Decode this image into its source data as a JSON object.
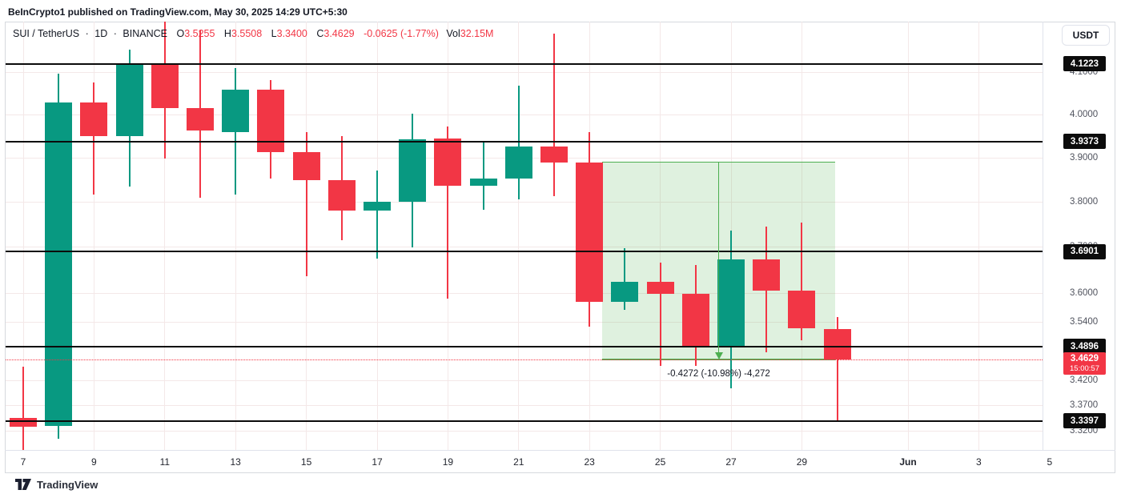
{
  "header": {
    "attribution": "BeInCrypto1 published on TradingView.com, May 30, 2025 14:29 UTC+5:30",
    "symbol_row": {
      "symbol": "SUI / TetherUS",
      "dot1": "·",
      "interval": "1D",
      "dot2": "·",
      "exchange": "BINANCE",
      "o_label": "O",
      "o_value": "3.5255",
      "h_label": "H",
      "h_value": "3.5508",
      "l_label": "L",
      "l_value": "3.3400",
      "c_label": "C",
      "c_value": "3.4629",
      "change": "-0.0625 (-1.77%)",
      "vol_label": "Vol",
      "vol_value": "32.15M"
    },
    "currency_button": "USDT"
  },
  "price_axis": {
    "ticks": [
      {
        "label": "4.1000",
        "price": 4.1
      },
      {
        "label": "4.0000",
        "price": 4.0
      },
      {
        "label": "3.9000",
        "price": 3.9
      },
      {
        "label": "3.8000",
        "price": 3.8
      },
      {
        "label": "3.7000",
        "price": 3.7
      },
      {
        "label": "3.6000",
        "price": 3.6
      },
      {
        "label": "3.5400",
        "price": 3.54
      },
      {
        "label": "3.4200",
        "price": 3.42
      },
      {
        "label": "3.3700",
        "price": 3.37
      },
      {
        "label": "3.3200",
        "price": 3.32
      }
    ],
    "current": {
      "label": "3.4629",
      "countdown": "15:00:57",
      "price": 3.4629
    }
  },
  "time_axis": {
    "labels": [
      {
        "label": "7",
        "day": 7
      },
      {
        "label": "9",
        "day": 9
      },
      {
        "label": "11",
        "day": 11
      },
      {
        "label": "13",
        "day": 13
      },
      {
        "label": "15",
        "day": 15
      },
      {
        "label": "17",
        "day": 17
      },
      {
        "label": "19",
        "day": 19
      },
      {
        "label": "21",
        "day": 21
      },
      {
        "label": "23",
        "day": 23
      },
      {
        "label": "25",
        "day": 25
      },
      {
        "label": "27",
        "day": 27
      },
      {
        "label": "29",
        "day": 29
      },
      {
        "label": "Jun",
        "day": 32,
        "bold": true
      },
      {
        "label": "3",
        "day": 34
      },
      {
        "label": "5",
        "day": 36
      }
    ]
  },
  "chart_data": {
    "type": "candlestick",
    "title": "SUI / TetherUS · 1D · BINANCE",
    "x_unit": "day of May 2025 (32+ = June)",
    "y_unit": "USDT",
    "y_scale": "log",
    "visible_price_range": [
      3.3,
      4.23
    ],
    "candles": [
      {
        "d": 7,
        "o": 3.345,
        "h": 3.448,
        "l": 3.281,
        "c": 3.328
      },
      {
        "d": 8,
        "o": 3.33,
        "h": 4.098,
        "l": 3.305,
        "c": 4.029
      },
      {
        "d": 9,
        "o": 4.029,
        "h": 4.077,
        "l": 3.816,
        "c": 3.95
      },
      {
        "d": 10,
        "o": 3.95,
        "h": 4.156,
        "l": 3.834,
        "c": 4.121
      },
      {
        "d": 11,
        "o": 4.121,
        "h": 4.225,
        "l": 3.898,
        "c": 4.016
      },
      {
        "d": 12,
        "o": 4.016,
        "h": 4.204,
        "l": 3.81,
        "c": 3.963
      },
      {
        "d": 13,
        "o": 3.959,
        "h": 4.111,
        "l": 3.816,
        "c": 4.059
      },
      {
        "d": 14,
        "o": 4.059,
        "h": 4.083,
        "l": 3.852,
        "c": 3.913
      },
      {
        "d": 15,
        "o": 3.913,
        "h": 3.959,
        "l": 3.637,
        "c": 3.849
      },
      {
        "d": 16,
        "o": 3.849,
        "h": 3.95,
        "l": 3.715,
        "c": 3.781
      },
      {
        "d": 17,
        "o": 3.781,
        "h": 3.87,
        "l": 3.675,
        "c": 3.801
      },
      {
        "d": 18,
        "o": 3.801,
        "h": 4.002,
        "l": 3.7,
        "c": 3.943
      },
      {
        "d": 19,
        "o": 3.944,
        "h": 3.972,
        "l": 3.589,
        "c": 3.836
      },
      {
        "d": 20,
        "o": 3.836,
        "h": 3.936,
        "l": 3.783,
        "c": 3.852
      },
      {
        "d": 21,
        "o": 3.852,
        "h": 4.069,
        "l": 3.805,
        "c": 3.926
      },
      {
        "d": 22,
        "o": 3.926,
        "h": 4.196,
        "l": 3.812,
        "c": 3.889
      },
      {
        "d": 23,
        "o": 3.889,
        "h": 3.959,
        "l": 3.531,
        "c": 3.583
      },
      {
        "d": 24,
        "o": 3.583,
        "h": 3.697,
        "l": 3.566,
        "c": 3.625
      },
      {
        "d": 25,
        "o": 3.625,
        "h": 3.666,
        "l": 3.45,
        "c": 3.6
      },
      {
        "d": 26,
        "o": 3.6,
        "h": 3.662,
        "l": 3.45,
        "c": 3.489
      },
      {
        "d": 27,
        "o": 3.489,
        "h": 3.736,
        "l": 3.404,
        "c": 3.673
      },
      {
        "d": 28,
        "o": 3.673,
        "h": 3.745,
        "l": 3.477,
        "c": 3.606
      },
      {
        "d": 29,
        "o": 3.606,
        "h": 3.754,
        "l": 3.502,
        "c": 3.527
      },
      {
        "d": 30,
        "o": 3.5255,
        "h": 3.5508,
        "l": 3.34,
        "c": 3.4629
      }
    ],
    "horizontal_lines": [
      {
        "label": "4.1223",
        "price": 4.1223
      },
      {
        "label": "3.9373",
        "price": 3.9373
      },
      {
        "label": "3.6901",
        "price": 3.6901
      },
      {
        "label": "3.4896",
        "price": 3.4896
      },
      {
        "label": "3.3397",
        "price": 3.3397
      }
    ],
    "current_price": 3.4629,
    "measure": {
      "label": "-0.4272 (-10.98%) -4,272",
      "from_price": 3.8901,
      "to_price": 3.4629,
      "from_day": 23.35,
      "to_day": 29.95,
      "direction": "down"
    }
  },
  "colors": {
    "up": "#089981",
    "down": "#f23645",
    "ray_line": "#0b0b0b",
    "measure": "#4caf50",
    "measure_fill": "rgba(76,175,80,0.18)",
    "current_line": "#f23645",
    "badge_bg": "#0c0c0c",
    "current_badge_bg": "#f23645"
  },
  "footer": {
    "logo_text": "TradingView"
  }
}
